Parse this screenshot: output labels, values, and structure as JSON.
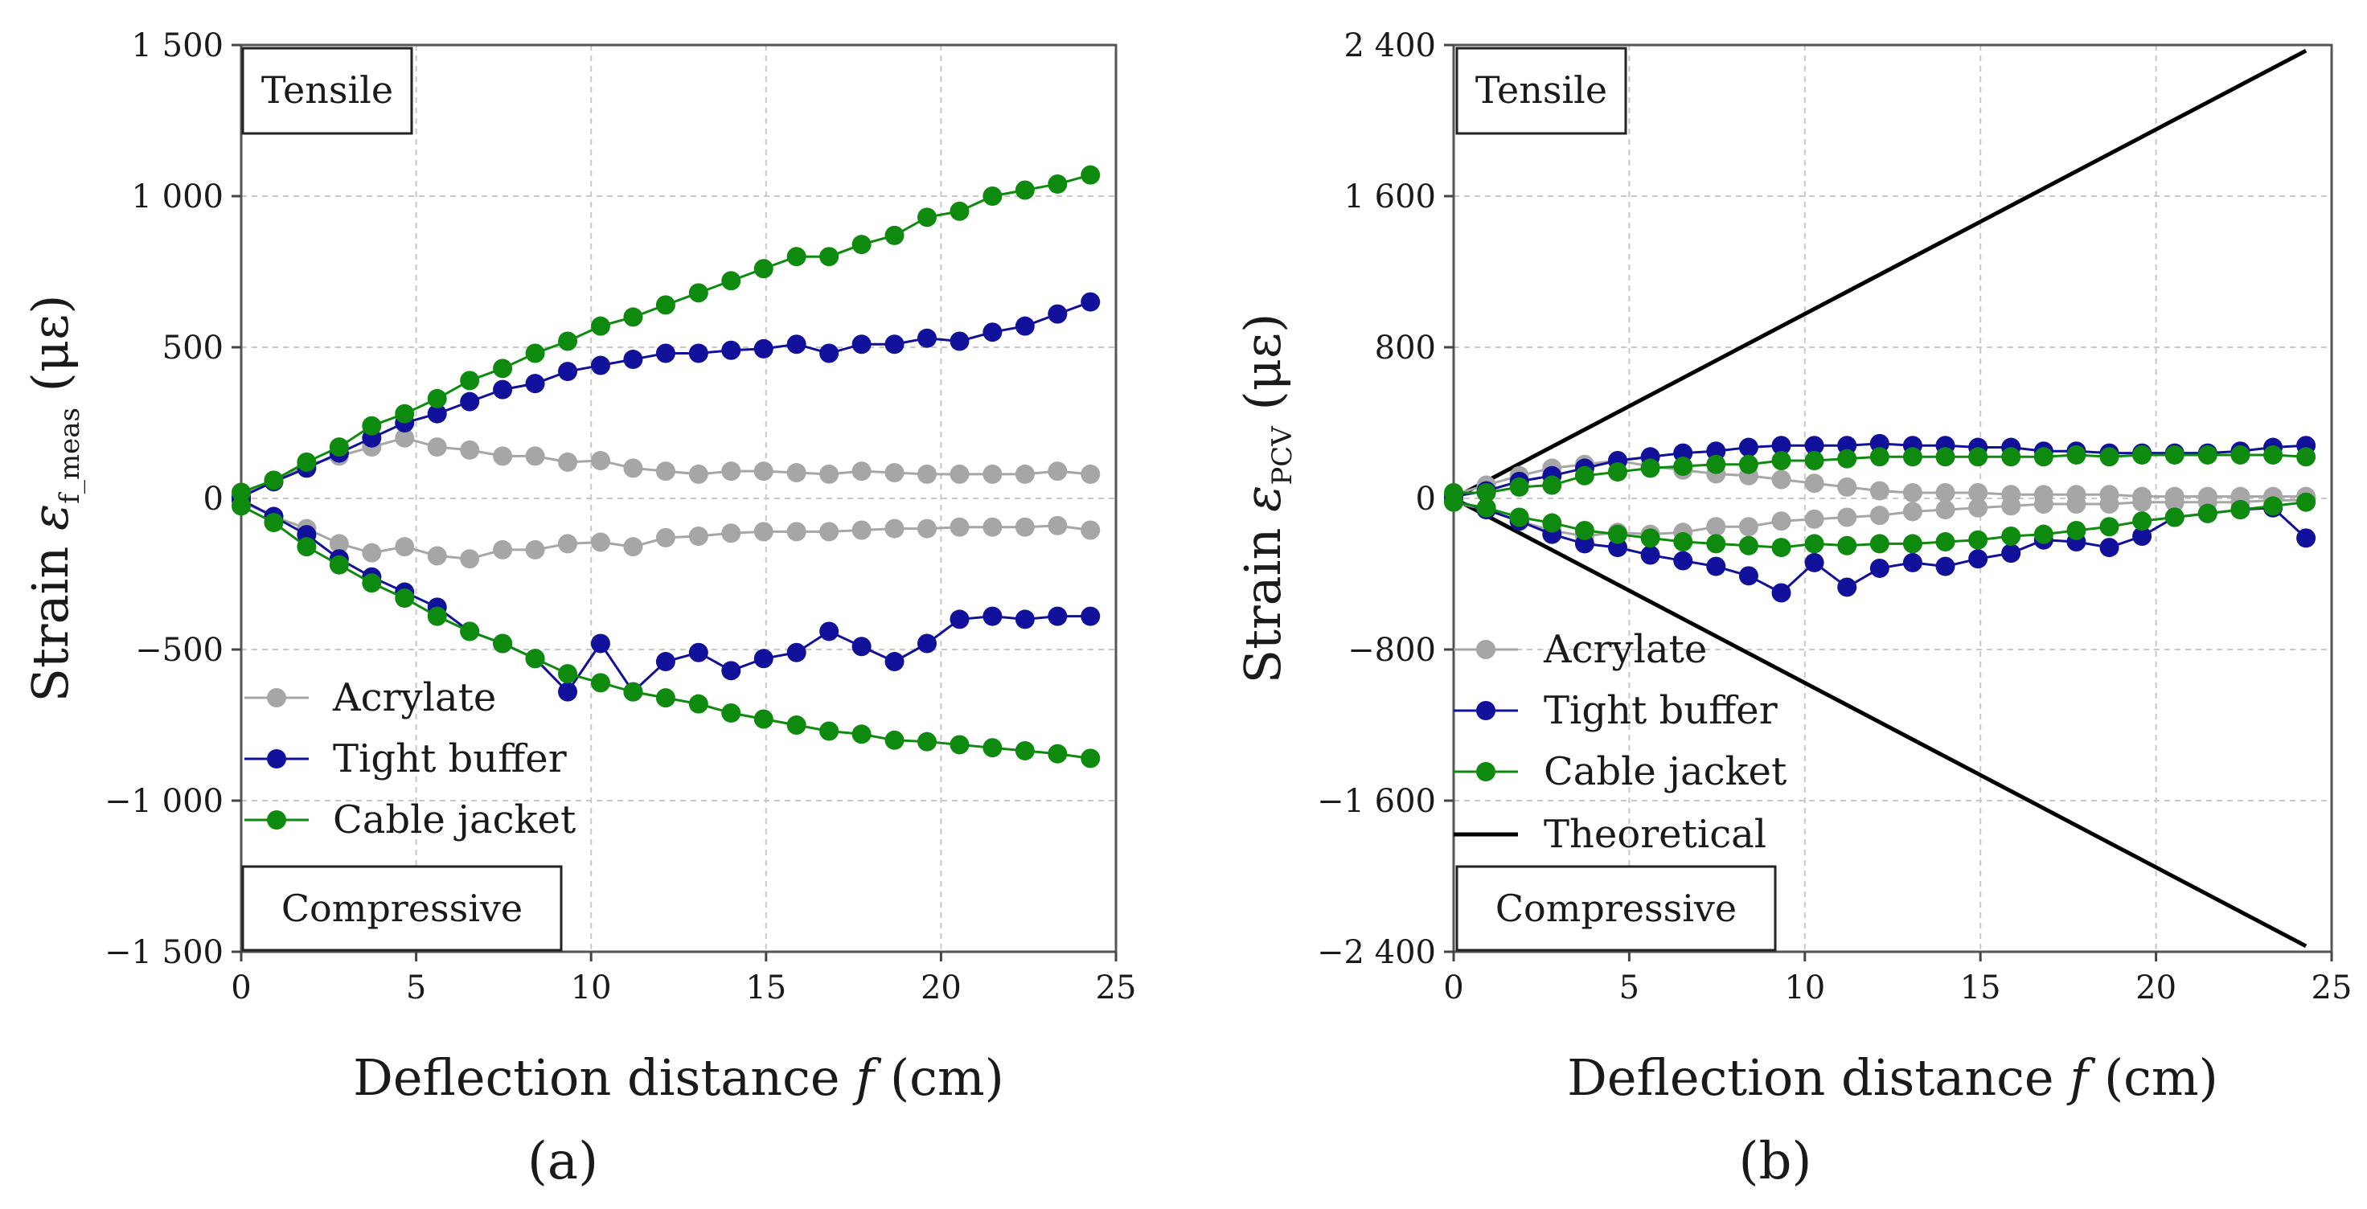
{
  "colors": {
    "acrylate": "#a6a6a6",
    "tight_buffer": "#10109a",
    "cable_jacket": "#0e8a0e",
    "theoretical": "#000000"
  },
  "chart_data": [
    {
      "type": "line",
      "panel_label": "(a)",
      "xlabel": "Deflection distance f (cm)",
      "xlabel_parts": {
        "pre": "Deflection distance ",
        "italic": "f",
        "post": " (cm)"
      },
      "ylabel": "Strain ε f_meas (με)",
      "ylabel_parts": {
        "pre": "Strain ",
        "italic": "ε",
        "sub": "f_meas",
        "post": " (με)"
      },
      "xlim": [
        0,
        25
      ],
      "ylim": [
        -1500,
        1500
      ],
      "x_ticks": [
        0,
        5,
        10,
        15,
        20,
        25
      ],
      "x_tick_labels": [
        "0",
        "5",
        "10",
        "15",
        "20",
        "25"
      ],
      "y_ticks": [
        -1500,
        -1000,
        -500,
        0,
        500,
        1000,
        1500
      ],
      "y_tick_labels": [
        "−1 500",
        "−1 000",
        "−500",
        "0",
        "500",
        "1 000",
        "1 500"
      ],
      "grid": true,
      "annotations": [
        {
          "text": "Tensile",
          "position": "top-left"
        },
        {
          "text": "Compressive",
          "position": "bottom-left"
        }
      ],
      "legend": [
        "Acrylate",
        "Tight buffer",
        "Cable jacket"
      ],
      "x": [
        0,
        0.93,
        1.87,
        2.8,
        3.73,
        4.67,
        5.6,
        6.53,
        7.47,
        8.4,
        9.33,
        10.27,
        11.2,
        12.13,
        13.07,
        14.0,
        14.93,
        15.87,
        16.8,
        17.73,
        18.67,
        19.6,
        20.53,
        21.47,
        22.4,
        23.33,
        24.27
      ],
      "series": [
        {
          "name": "Acrylate",
          "key": "acrylate",
          "upper": [
            10,
            60,
            110,
            140,
            170,
            200,
            170,
            160,
            140,
            140,
            120,
            125,
            100,
            90,
            80,
            90,
            90,
            85,
            80,
            90,
            85,
            80,
            80,
            80,
            80,
            90,
            80
          ],
          "lower": [
            -10,
            -60,
            -100,
            -150,
            -180,
            -160,
            -190,
            -200,
            -170,
            -170,
            -150,
            -145,
            -160,
            -130,
            -125,
            -115,
            -110,
            -110,
            -110,
            -105,
            -100,
            -100,
            -95,
            -95,
            -95,
            -90,
            -105
          ]
        },
        {
          "name": "Tight buffer",
          "key": "tight_buffer",
          "upper": [
            5,
            55,
            100,
            150,
            200,
            250,
            280,
            320,
            360,
            380,
            420,
            440,
            460,
            480,
            480,
            490,
            495,
            510,
            480,
            510,
            510,
            530,
            520,
            550,
            570,
            610,
            650
          ],
          "lower": [
            -5,
            -60,
            -120,
            -200,
            -260,
            -310,
            -360,
            -440,
            -480,
            -530,
            -640,
            -480,
            -640,
            -540,
            -510,
            -570,
            -530,
            -510,
            -440,
            -490,
            -540,
            -480,
            -400,
            -390,
            -400,
            -390,
            -390
          ]
        },
        {
          "name": "Cable jacket",
          "key": "cable_jacket",
          "upper": [
            20,
            60,
            120,
            170,
            240,
            280,
            330,
            390,
            430,
            480,
            520,
            570,
            600,
            640,
            680,
            720,
            760,
            800,
            800,
            840,
            870,
            930,
            950,
            1000,
            1020,
            1040,
            1070
          ],
          "lower": [
            -25,
            -80,
            -160,
            -220,
            -280,
            -330,
            -390,
            -440,
            -480,
            -530,
            -580,
            -610,
            -640,
            -660,
            -680,
            -710,
            -730,
            -750,
            -770,
            -780,
            -800,
            -805,
            -815,
            -825,
            -835,
            -845,
            -860
          ]
        }
      ]
    },
    {
      "type": "line",
      "panel_label": "(b)",
      "xlabel": "Deflection distance f (cm)",
      "xlabel_parts": {
        "pre": "Deflection distance ",
        "italic": "f",
        "post": " (cm)"
      },
      "ylabel": "Strain ε PCV (με)",
      "ylabel_parts": {
        "pre": "Strain ",
        "italic": "ε",
        "sub": "PCV",
        "post": " (με)"
      },
      "xlim": [
        0,
        25
      ],
      "ylim": [
        -2400,
        2400
      ],
      "x_ticks": [
        0,
        5,
        10,
        15,
        20,
        25
      ],
      "x_tick_labels": [
        "0",
        "5",
        "10",
        "15",
        "20",
        "25"
      ],
      "y_ticks": [
        -2400,
        -1600,
        -800,
        0,
        800,
        1600,
        2400
      ],
      "y_tick_labels": [
        "−2 400",
        "−1 600",
        "−800",
        "0",
        "800",
        "1 600",
        "2 400"
      ],
      "grid": true,
      "annotations": [
        {
          "text": "Tensile",
          "position": "top-left"
        },
        {
          "text": "Compressive",
          "position": "bottom-left"
        }
      ],
      "legend": [
        "Acrylate",
        "Tight buffer",
        "Cable jacket",
        "Theoretical"
      ],
      "x": [
        0,
        0.93,
        1.87,
        2.8,
        3.73,
        4.67,
        5.6,
        6.53,
        7.47,
        8.4,
        9.33,
        10.27,
        11.2,
        12.13,
        13.07,
        14.0,
        14.93,
        15.87,
        16.8,
        17.73,
        18.67,
        19.6,
        20.53,
        21.47,
        22.4,
        23.33,
        24.27
      ],
      "series": [
        {
          "name": "Acrylate",
          "key": "acrylate",
          "upper": [
            20,
            70,
            120,
            160,
            180,
            200,
            170,
            150,
            130,
            120,
            100,
            80,
            60,
            40,
            30,
            30,
            30,
            20,
            20,
            20,
            20,
            10,
            10,
            10,
            10,
            10,
            10
          ],
          "lower": [
            -20,
            -60,
            -120,
            -170,
            -200,
            -180,
            -190,
            -180,
            -150,
            -150,
            -120,
            -110,
            -100,
            -90,
            -70,
            -60,
            -50,
            -40,
            -30,
            -30,
            -30,
            -20,
            -20,
            -20,
            -20,
            -10,
            -10
          ]
        },
        {
          "name": "Tight buffer",
          "key": "tight_buffer",
          "upper": [
            10,
            40,
            90,
            120,
            160,
            200,
            220,
            240,
            250,
            270,
            280,
            280,
            280,
            290,
            280,
            280,
            270,
            270,
            250,
            250,
            240,
            240,
            240,
            240,
            250,
            270,
            280
          ],
          "lower": [
            -10,
            -60,
            -120,
            -190,
            -240,
            -260,
            -300,
            -330,
            -360,
            -410,
            -500,
            -340,
            -470,
            -370,
            -340,
            -360,
            -320,
            -290,
            -220,
            -230,
            -260,
            -200,
            -100,
            -80,
            -60,
            -50,
            -210
          ]
        },
        {
          "name": "Cable jacket",
          "key": "cable_jacket",
          "upper": [
            30,
            30,
            60,
            70,
            120,
            140,
            160,
            170,
            180,
            180,
            200,
            200,
            210,
            220,
            220,
            220,
            220,
            220,
            220,
            230,
            220,
            230,
            230,
            230,
            230,
            230,
            220
          ],
          "lower": [
            -20,
            -50,
            -100,
            -130,
            -170,
            -190,
            -210,
            -230,
            -240,
            -250,
            -260,
            -240,
            -250,
            -240,
            -240,
            -230,
            -220,
            -200,
            -190,
            -170,
            -150,
            -120,
            -100,
            -80,
            -60,
            -40,
            -20
          ]
        },
        {
          "name": "Theoretical",
          "key": "theoretical",
          "line_x": [
            0,
            24.27
          ],
          "upper_line": [
            0,
            2370
          ],
          "lower_line": [
            0,
            -2370
          ]
        }
      ]
    }
  ]
}
